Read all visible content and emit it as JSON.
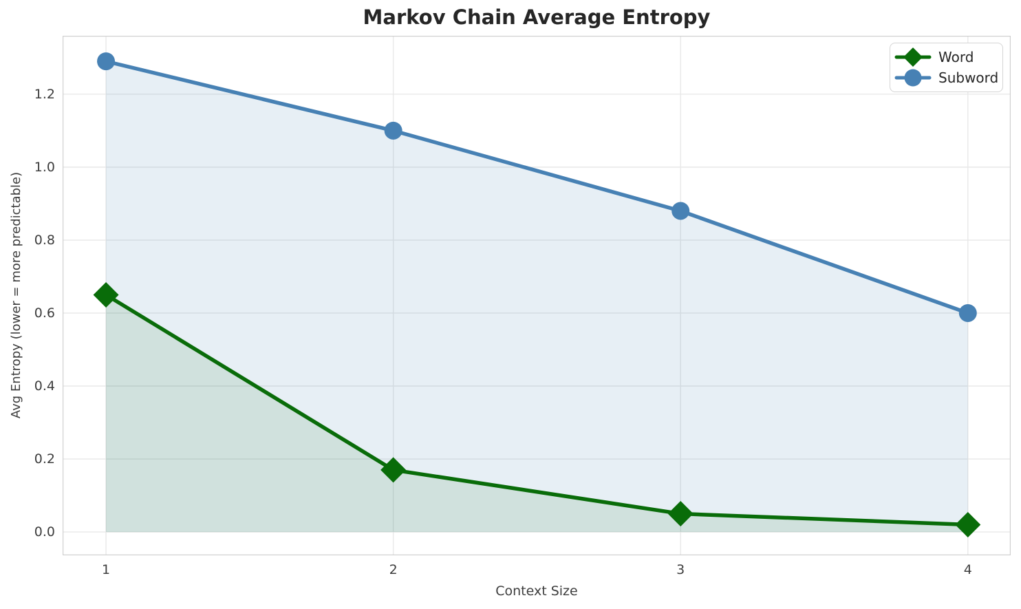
{
  "title": "Markov Chain Average Entropy",
  "chart_data": {
    "type": "line",
    "title": "Markov Chain Average Entropy",
    "xlabel": "Context Size",
    "ylabel": "Avg Entropy (lower = more predictable)",
    "x": [
      1,
      2,
      3,
      4
    ],
    "series": [
      {
        "name": "Word",
        "values": [
          0.65,
          0.17,
          0.05,
          0.02
        ],
        "color": "#096c09",
        "marker": "diamond",
        "fill_to_zero": true,
        "fill_alpha": 0.1
      },
      {
        "name": "Subword",
        "values": [
          1.29,
          1.1,
          0.88,
          0.6
        ],
        "color": "#4781b4",
        "marker": "circle",
        "fill_to_zero": true,
        "fill_alpha": 0.13
      }
    ],
    "x_ticks": [
      1,
      2,
      3,
      4
    ],
    "x_tick_labels": [
      "1",
      "2",
      "3",
      "4"
    ],
    "y_ticks": [
      0.0,
      0.2,
      0.4,
      0.6,
      0.8,
      1.0,
      1.2
    ],
    "y_tick_labels": [
      "0.0",
      "0.2",
      "0.4",
      "0.6",
      "0.8",
      "1.0",
      "1.2"
    ],
    "xlim": [
      0.849,
      4.149
    ],
    "ylim": [
      -0.064,
      1.36
    ],
    "grid": true,
    "legend_position": "upper right",
    "legend_entries": [
      "Word",
      "Subword"
    ],
    "colors": {
      "grid": "#e8e8e8",
      "spine": "#cfcfcf",
      "text": "#3d3d3d",
      "title": "#262626",
      "background": "#ffffff"
    }
  }
}
